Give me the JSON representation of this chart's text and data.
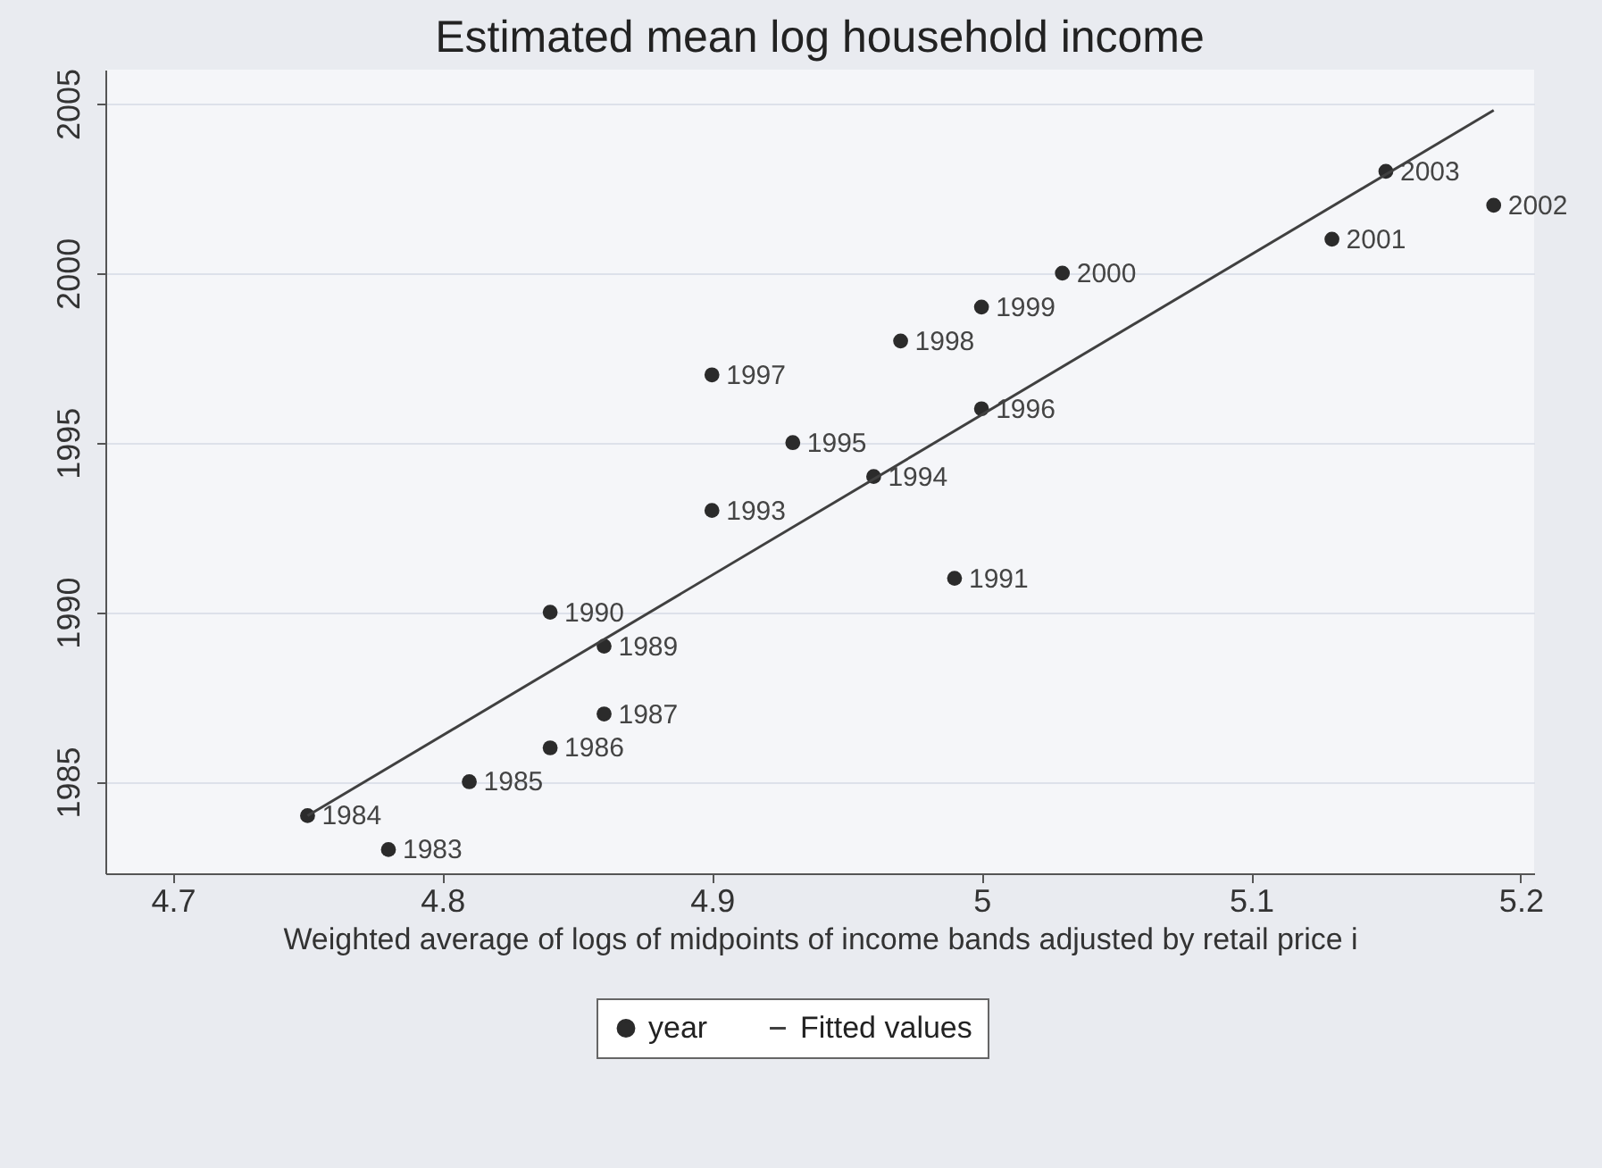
{
  "chart_data": {
    "type": "scatter",
    "title": "Estimated mean log household income",
    "xlabel": "Weighted average of logs of midpoints of income bands adjusted by retail price i",
    "xlim": [
      4.675,
      5.205
    ],
    "xticks": [
      4.7,
      4.8,
      4.9,
      5,
      5.1,
      5.2
    ],
    "ylim": [
      1982.3,
      2006
    ],
    "yticks": [
      1985,
      1990,
      1995,
      2000,
      2005
    ],
    "grid": "y",
    "legend": "bottom",
    "series": [
      {
        "name": "year",
        "marker": "circle",
        "color": "#2b2b2b",
        "x": [
          4.78,
          4.75,
          4.81,
          4.84,
          4.86,
          4.86,
          4.84,
          4.99,
          4.9,
          4.96,
          4.93,
          5.0,
          4.9,
          4.97,
          5.0,
          5.03,
          5.13,
          5.19,
          5.15
        ],
        "values": [
          1983,
          1984,
          1985,
          1986,
          1987,
          1989,
          1990,
          1991,
          1993,
          1994,
          1995,
          1996,
          1997,
          1998,
          1999,
          2000,
          2001,
          2002,
          2003
        ],
        "value_labels": [
          "1983",
          "1984",
          "1985",
          "1986",
          "1987",
          "1989",
          "1990",
          "1991",
          "1993",
          "1994",
          "1995",
          "1996",
          "1997",
          "1998",
          "1999",
          "2000",
          "2001",
          "2002",
          "2003"
        ]
      },
      {
        "name": "Fitted values",
        "type": "line",
        "color": "#404040",
        "x": [
          4.75,
          5.19
        ],
        "values": [
          1984.0,
          2004.8
        ]
      }
    ]
  }
}
